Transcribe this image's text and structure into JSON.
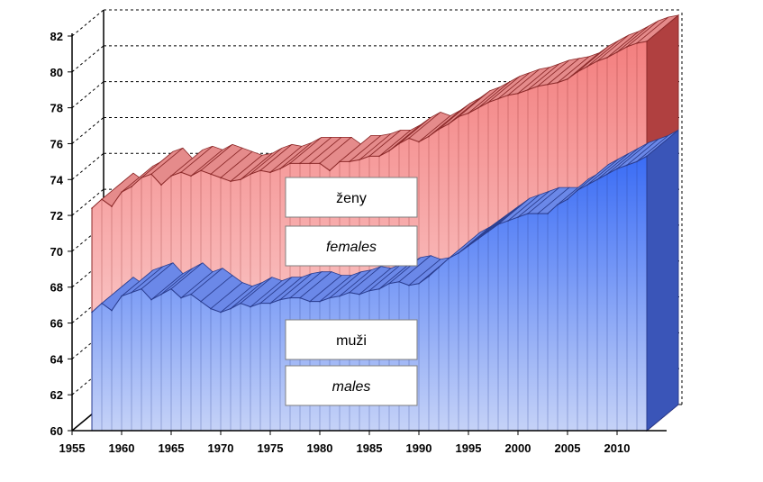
{
  "chart_data": {
    "type": "area",
    "x": [
      1957,
      1958,
      1959,
      1960,
      1961,
      1962,
      1963,
      1964,
      1965,
      1966,
      1967,
      1968,
      1969,
      1970,
      1971,
      1972,
      1973,
      1974,
      1975,
      1976,
      1977,
      1978,
      1979,
      1980,
      1981,
      1982,
      1983,
      1984,
      1985,
      1986,
      1987,
      1988,
      1989,
      1990,
      1991,
      1992,
      1993,
      1994,
      1995,
      1996,
      1997,
      1998,
      1999,
      2000,
      2001,
      2002,
      2003,
      2004,
      2005,
      2006,
      2007,
      2008,
      2009,
      2010,
      2011,
      2012,
      2013
    ],
    "series": [
      {
        "name": "ženy / females",
        "color": "#f37f7f",
        "values": [
          72.4,
          72.9,
          72.5,
          73.3,
          73.6,
          74.1,
          74.3,
          73.7,
          74.2,
          74.4,
          74.2,
          74.5,
          74.3,
          74.1,
          73.9,
          74.0,
          74.3,
          74.5,
          74.4,
          74.6,
          74.9,
          74.9,
          74.9,
          74.9,
          74.5,
          75.0,
          75.0,
          75.1,
          75.3,
          75.3,
          75.6,
          76.0,
          76.3,
          76.1,
          76.4,
          76.8,
          77.1,
          77.5,
          77.7,
          78.0,
          78.3,
          78.5,
          78.7,
          78.8,
          79.0,
          79.2,
          79.3,
          79.4,
          79.6,
          80.0,
          80.3,
          80.6,
          80.8,
          81.1,
          81.4,
          81.6,
          81.7
        ]
      },
      {
        "name": "muži / males",
        "color": "#3366ff",
        "values": [
          66.6,
          67.1,
          66.7,
          67.5,
          67.7,
          67.9,
          67.3,
          67.6,
          67.9,
          67.4,
          67.6,
          67.2,
          66.8,
          66.6,
          66.8,
          67.1,
          66.9,
          67.1,
          67.1,
          67.3,
          67.4,
          67.4,
          67.2,
          67.2,
          67.4,
          67.5,
          67.7,
          67.6,
          67.8,
          67.9,
          68.2,
          68.3,
          68.1,
          68.2,
          68.6,
          69.1,
          69.6,
          69.9,
          70.3,
          70.7,
          71.1,
          71.5,
          71.7,
          71.9,
          72.1,
          72.1,
          72.1,
          72.6,
          72.9,
          73.4,
          73.7,
          74.0,
          74.3,
          74.6,
          74.8,
          75.0,
          75.3
        ]
      }
    ],
    "xlim": [
      1955,
      2015
    ],
    "ylim": [
      60,
      82
    ],
    "x_ticks": [
      "1955",
      "1960",
      "1965",
      "1970",
      "1975",
      "1980",
      "1985",
      "1990",
      "1995",
      "2000",
      "2005",
      "2010"
    ],
    "y_ticks": [
      "60",
      "62",
      "64",
      "66",
      "68",
      "70",
      "72",
      "74",
      "76",
      "78",
      "80",
      "82"
    ],
    "grid": true,
    "labels": {
      "females_cz": "ženy",
      "females_en": "females",
      "males_cz": "muži",
      "males_en": "males"
    },
    "colors": {
      "females_front": "#f37f7f",
      "females_light": "#fcdcdc",
      "females_edge": "#8c2a2a",
      "males_front": "#3a6cf5",
      "males_light": "#c5d2f7",
      "males_edge": "#2a3d8f"
    }
  }
}
